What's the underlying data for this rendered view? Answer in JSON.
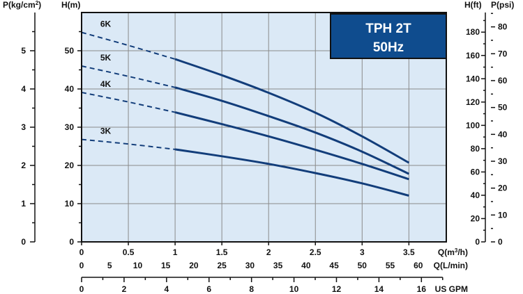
{
  "chart_data": {
    "type": "line",
    "title": "TPH 2T 50Hz",
    "title_lines": [
      "TPH 2T",
      "50Hz"
    ],
    "x_unit_label": "Q(m³/h)",
    "x_unit_superscript": "3",
    "x_unit_prefix": "Q(m",
    "x_unit_suffix": "/h)",
    "x_ticks": [
      "0",
      "0.5",
      "1",
      "1.5",
      "2",
      "2.5",
      "3",
      "3.5"
    ],
    "xlim": [
      0,
      3.9
    ],
    "y_label": "H(m)",
    "y_ticks": [
      "0",
      "10",
      "20",
      "30",
      "40",
      "50"
    ],
    "ylim": [
      0,
      60
    ],
    "grid": true,
    "secondary_x_axes": [
      {
        "label": "Q(L/min)",
        "ticks": [
          "0",
          "5",
          "10",
          "15",
          "20",
          "25",
          "30",
          "35",
          "40",
          "45",
          "50",
          "55",
          "60"
        ]
      },
      {
        "label": "US GPM",
        "ticks": [
          "0",
          "2",
          "4",
          "6",
          "8",
          "10",
          "12",
          "14",
          "16"
        ]
      }
    ],
    "secondary_y_axes": [
      {
        "label": "P(kg/cm²)",
        "label_prefix": "P(kg/cm",
        "label_superscript": "2",
        "label_suffix": ")",
        "side": "left",
        "ticks": [
          "0",
          "1",
          "2",
          "3",
          "4",
          "5"
        ]
      },
      {
        "label": "H(ft)",
        "side": "right",
        "ticks": [
          "0",
          "20",
          "40",
          "60",
          "80",
          "100",
          "120",
          "140",
          "160",
          "180"
        ]
      },
      {
        "label": "P(psi)",
        "side": "right",
        "ticks": [
          "0",
          "10",
          "20",
          "30",
          "40",
          "50",
          "60",
          "70",
          "80"
        ]
      }
    ],
    "series": [
      {
        "name": "6K",
        "dashed_until": 1.0,
        "points": [
          [
            0,
            54.8
          ],
          [
            0.5,
            51.4
          ],
          [
            1.0,
            47.8
          ],
          [
            1.5,
            43.6
          ],
          [
            2.0,
            39.0
          ],
          [
            2.5,
            33.8
          ],
          [
            3.0,
            27.6
          ],
          [
            3.5,
            20.7
          ]
        ]
      },
      {
        "name": "5K",
        "dashed_until": 1.0,
        "points": [
          [
            0,
            46.0
          ],
          [
            0.5,
            43.3
          ],
          [
            1.0,
            40.4
          ],
          [
            1.5,
            36.9
          ],
          [
            2.0,
            32.9
          ],
          [
            2.5,
            28.6
          ],
          [
            3.0,
            23.6
          ],
          [
            3.5,
            17.8
          ]
        ]
      },
      {
        "name": "4K",
        "dashed_until": 1.0,
        "points": [
          [
            0,
            39.1
          ],
          [
            0.5,
            36.6
          ],
          [
            1.0,
            33.9
          ],
          [
            1.5,
            30.8
          ],
          [
            2.0,
            27.6
          ],
          [
            2.5,
            24.1
          ],
          [
            3.0,
            20.4
          ],
          [
            3.5,
            16.4
          ]
        ]
      },
      {
        "name": "3K",
        "dashed_until": 1.0,
        "points": [
          [
            0,
            26.8
          ],
          [
            0.5,
            25.6
          ],
          [
            1.0,
            24.2
          ],
          [
            1.5,
            22.4
          ],
          [
            2.0,
            20.4
          ],
          [
            2.5,
            18.0
          ],
          [
            3.0,
            15.3
          ],
          [
            3.5,
            12.1
          ]
        ]
      }
    ],
    "colors": {
      "plot_background": "#dbe9f6",
      "curve": "#123d7a",
      "badge": "#0f4c8e",
      "grid": "#8a8a8a",
      "axis": "#111111"
    }
  }
}
